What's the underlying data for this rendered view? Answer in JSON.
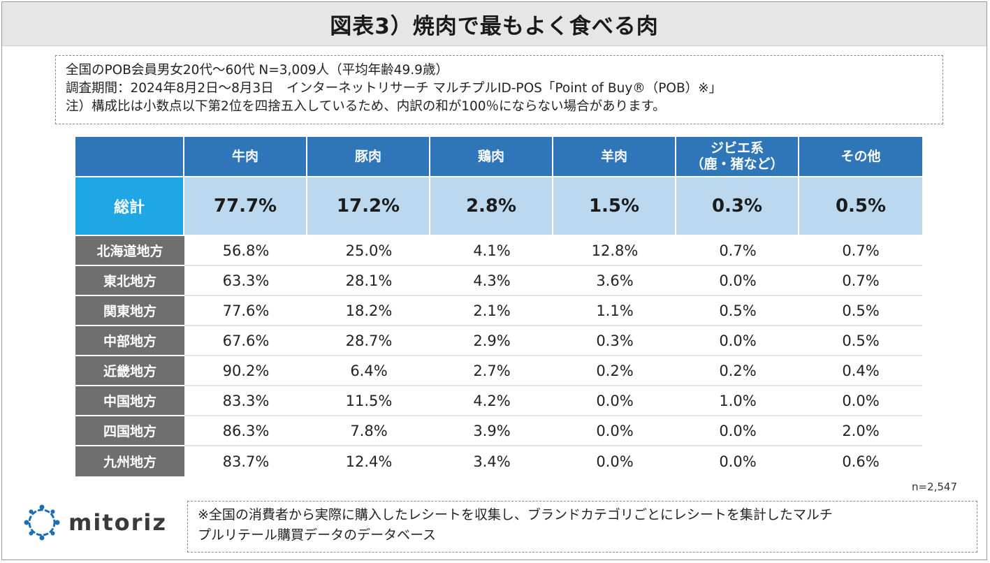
{
  "title": "図表3）焼肉で最もよく食べる肉",
  "notes": [
    "全国のPOB会員男女20代〜60代 N=3,009人（平均年齢49.9歳）",
    "調査期間：2024年8月2日〜8月3日　インターネットリサーチ マルチプルID-POS「Point of Buy®（POB）※」",
    "注）構成比は小数点以下第2位を四捨五入しているため、内訳の和が100％にならない場合があります。"
  ],
  "chart_data": {
    "type": "table",
    "columns": [
      "牛肉",
      "豚肉",
      "鶏肉",
      "羊肉",
      "ジビエ系",
      "その他"
    ],
    "column_sublabels": [
      "",
      "",
      "",
      "",
      "（鹿・猪など）",
      ""
    ],
    "total": {
      "label": "総計",
      "values": [
        "77.7%",
        "17.2%",
        "2.8%",
        "1.5%",
        "0.3%",
        "0.5%"
      ]
    },
    "rows": [
      {
        "label": "北海道地方",
        "values": [
          "56.8%",
          "25.0%",
          "4.1%",
          "12.8%",
          "0.7%",
          "0.7%"
        ]
      },
      {
        "label": "東北地方",
        "values": [
          "63.3%",
          "28.1%",
          "4.3%",
          "3.6%",
          "0.0%",
          "0.7%"
        ]
      },
      {
        "label": "関東地方",
        "values": [
          "77.6%",
          "18.2%",
          "2.1%",
          "1.1%",
          "0.5%",
          "0.5%"
        ]
      },
      {
        "label": "中部地方",
        "values": [
          "67.6%",
          "28.7%",
          "2.9%",
          "0.3%",
          "0.0%",
          "0.5%"
        ]
      },
      {
        "label": "近畿地方",
        "values": [
          "90.2%",
          "6.4%",
          "2.7%",
          "0.2%",
          "0.2%",
          "0.4%"
        ]
      },
      {
        "label": "中国地方",
        "values": [
          "83.3%",
          "11.5%",
          "4.2%",
          "0.0%",
          "1.0%",
          "0.0%"
        ]
      },
      {
        "label": "四国地方",
        "values": [
          "86.3%",
          "7.8%",
          "3.9%",
          "0.0%",
          "0.0%",
          "2.0%"
        ]
      },
      {
        "label": "九州地方",
        "values": [
          "83.7%",
          "12.4%",
          "3.4%",
          "0.0%",
          "0.0%",
          "0.6%"
        ]
      }
    ],
    "sample_size": "n=2,547"
  },
  "logo": {
    "text": "mitoriz"
  },
  "footnote": [
    "※全国の消費者から実際に購入したレシートを収集し、ブランドカテゴリごとにレシートを集計したマルチ",
    "プルリテール購買データのデータベース"
  ],
  "colors": {
    "header_blue": "#2f76b9",
    "total_label_cyan": "#1ea7e4",
    "total_row_fill": "#bcd8ee",
    "region_label_gray": "#6f6f6f",
    "logo_blue": "#1a6fb5"
  }
}
